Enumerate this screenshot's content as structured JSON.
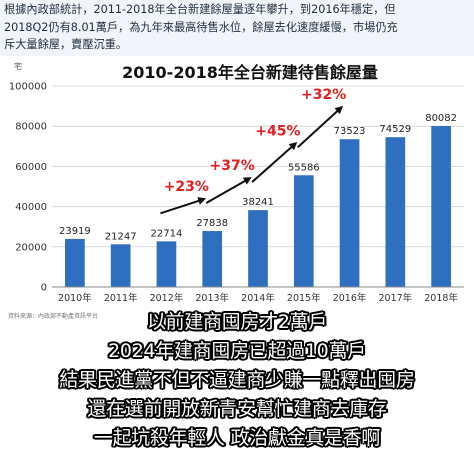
{
  "header": {
    "lines": [
      "根據內政部統計，2011-2018年全台新建餘屋量逐年攀升，到2016年穩定，但",
      "2018Q2仍有8.01萬戶，為九年來最高待售水位，餘屋去化速度緩慢，市場仍充",
      "斥大量餘屋，賣壓沉重。"
    ]
  },
  "chart_data": {
    "type": "bar",
    "title": "2010-2018年全台新建待售餘屋量",
    "ylabel": "宅",
    "categories": [
      "2010年",
      "2011年",
      "2012年",
      "2013年",
      "2014年",
      "2015年",
      "2016年",
      "2017年",
      "2018年"
    ],
    "values": [
      23919,
      21247,
      22714,
      27838,
      38241,
      55586,
      73523,
      74529,
      80082
    ],
    "ylim": [
      0,
      100000
    ],
    "yticks": [
      "0",
      "20000",
      "40000",
      "60000",
      "80000",
      "100000"
    ],
    "grid": true,
    "bar_color": "#2f6fbf",
    "annotations": [
      {
        "label": "+23%",
        "from": 2,
        "to": 3
      },
      {
        "label": "+37%",
        "from": 3,
        "to": 4
      },
      {
        "label": "+45%",
        "from": 4,
        "to": 5
      },
      {
        "label": "+32%",
        "from": 5,
        "to": 6
      }
    ],
    "annotation_color": "#e02020",
    "source": "資料來源：內政部不動產資訊平台"
  },
  "caption": {
    "lines": [
      "以前建商囤房才2萬戶",
      "2024年建商囤房已超過10萬戶",
      "結果民進黨不但不逼建商少賺一點釋出囤房",
      "還在選前開放新青安幫忙建商去庫存",
      "一起坑殺年輕人 政治獻金真是香啊"
    ]
  }
}
